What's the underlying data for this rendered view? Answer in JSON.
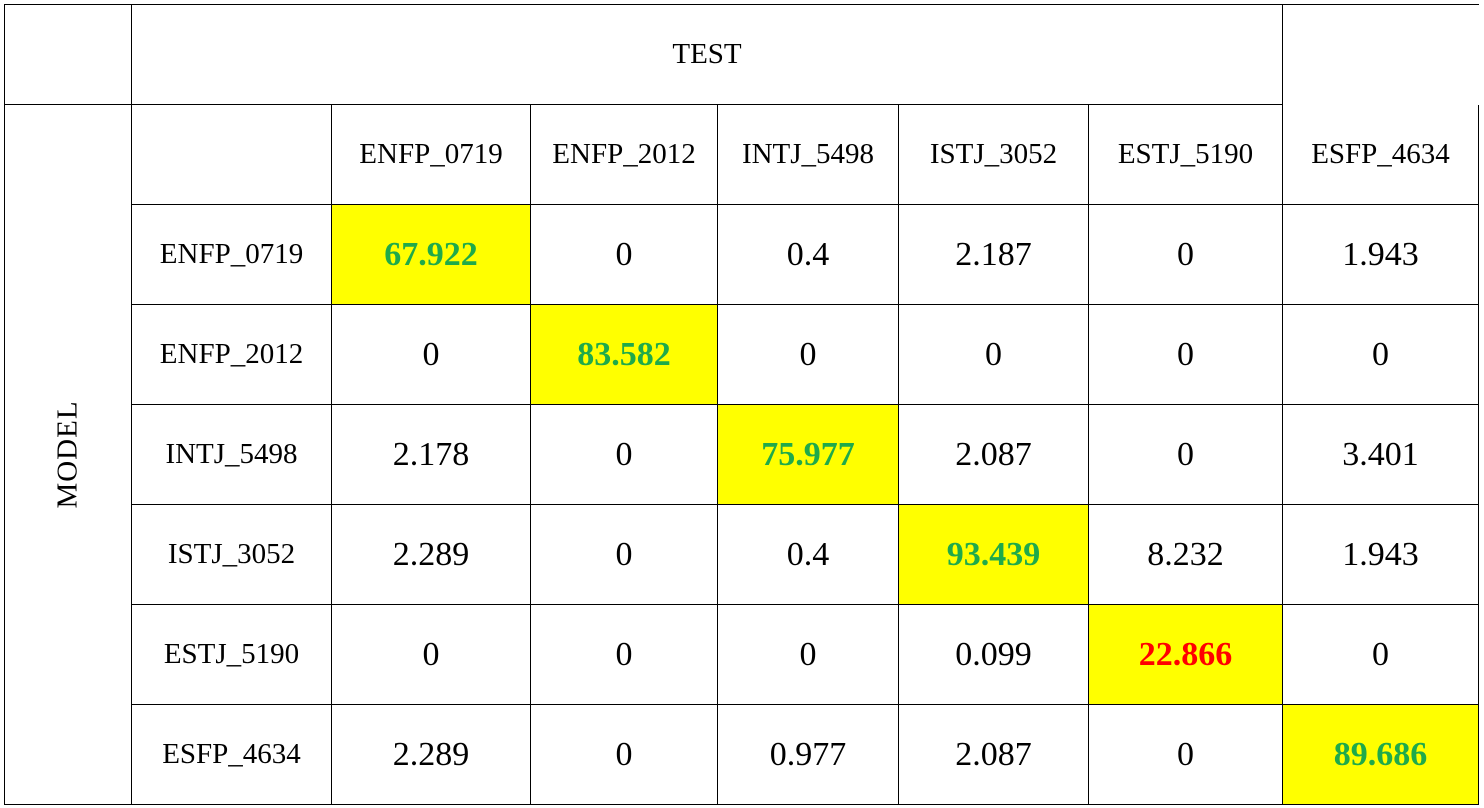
{
  "header": {
    "test_label": "TEST",
    "model_label": "MODEL"
  },
  "columns": [
    "ENFP_0719",
    "ENFP_2012",
    "INTJ_5498",
    "ISTJ_3052",
    "ESTJ_5190",
    "ESFP_4634"
  ],
  "rows": [
    {
      "label": "ENFP_0719",
      "values": [
        "67.922",
        "0",
        "0.4",
        "2.187",
        "0",
        "1.943"
      ]
    },
    {
      "label": "ENFP_2012",
      "values": [
        "0",
        "83.582",
        "0",
        "0",
        "0",
        "0"
      ]
    },
    {
      "label": "INTJ_5498",
      "values": [
        "2.178",
        "0",
        "75.977",
        "2.087",
        "0",
        "3.401"
      ]
    },
    {
      "label": "ISTJ_3052",
      "values": [
        "2.289",
        "0",
        "0.4",
        "93.439",
        "8.232",
        "1.943"
      ]
    },
    {
      "label": "ESTJ_5190",
      "values": [
        "0",
        "0",
        "0",
        "0.099",
        "22.866",
        "0"
      ]
    },
    {
      "label": "ESFP_4634",
      "values": [
        "2.289",
        "0",
        "0.977",
        "2.087",
        "0",
        "89.686"
      ]
    }
  ],
  "diagonal_status": [
    "good",
    "good",
    "good",
    "good",
    "bad",
    "good"
  ],
  "colors": {
    "highlight": "#ffff00",
    "good": "#1faa4a",
    "bad": "#ff0000",
    "border": "#000000"
  }
}
